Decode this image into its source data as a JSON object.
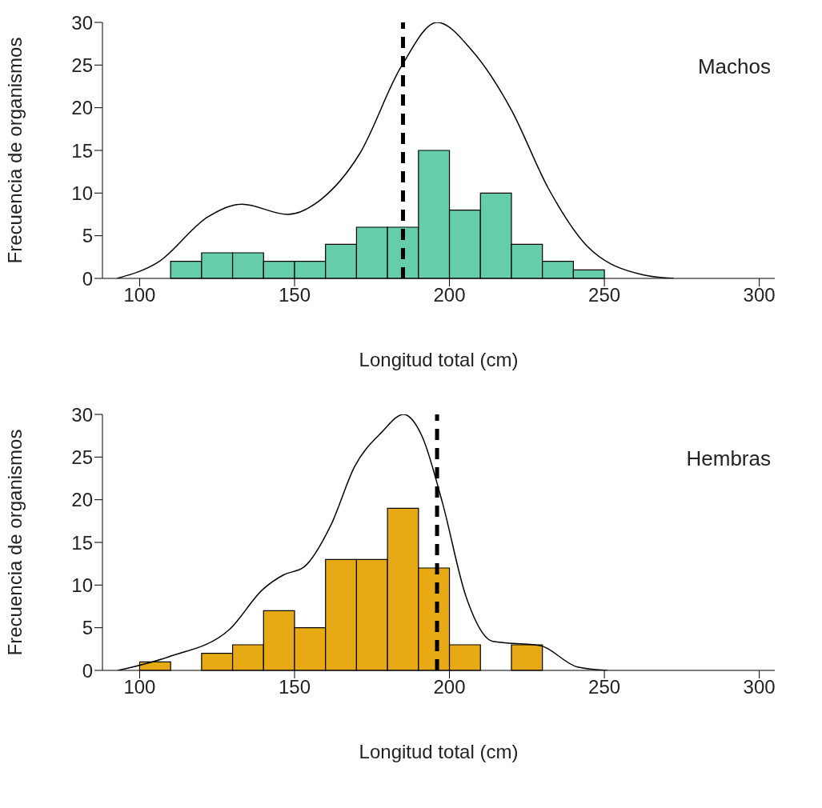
{
  "chart_data": [
    {
      "type": "histogram",
      "xlabel": "Longitud total (cm)",
      "ylabel": "Frecuencia de organismos",
      "annotations": [
        "Machos"
      ],
      "xlim": [
        88,
        305
      ],
      "xticks": [
        100,
        150,
        200,
        250,
        300
      ],
      "ylim": [
        0,
        30
      ],
      "yticks": [
        0,
        5,
        10,
        15,
        20,
        25,
        30
      ],
      "series": [
        {
          "color": "#66cdaa",
          "bins": [
            110,
            120,
            130,
            140,
            150,
            160,
            170,
            180,
            190,
            200,
            210,
            220,
            230,
            240,
            250
          ],
          "values": [
            2,
            3,
            3,
            2,
            2,
            4,
            6,
            6,
            15,
            8,
            10,
            4,
            2,
            1
          ]
        },
        {
          "type": "line",
          "color": "#000000",
          "x": [
            92.7,
            106,
            122,
            133,
            147.8,
            158.7,
            171,
            184.4,
            196,
            207.5,
            219.9,
            232,
            244.4,
            262.7,
            272.4
          ],
          "values": [
            0,
            1.9,
            7.2,
            8.7,
            7.5,
            9.3,
            14.6,
            24.8,
            30,
            26.6,
            19.8,
            10.5,
            3.8,
            0.4,
            0
          ]
        }
      ],
      "ref_lines": [
        {
          "axis": "x",
          "value": 185,
          "color": "#000000",
          "line_style": "dashed"
        }
      ]
    },
    {
      "type": "histogram",
      "xlabel": "Longitud total (cm)",
      "ylabel": "Frecuencia de organismos",
      "annotations": [
        "Hembras"
      ],
      "xlim": [
        88,
        305
      ],
      "xticks": [
        100,
        150,
        200,
        250,
        300
      ],
      "ylim": [
        0,
        30
      ],
      "yticks": [
        0,
        5,
        10,
        15,
        20,
        25,
        30
      ],
      "series": [
        {
          "color": "#e8aa14",
          "bins": [
            100,
            110,
            120,
            130,
            140,
            150,
            160,
            170,
            180,
            190,
            200,
            210,
            220,
            230
          ],
          "values": [
            1,
            0,
            2,
            3,
            7,
            5,
            13,
            13,
            19,
            12,
            3,
            0,
            3
          ]
        },
        {
          "type": "line",
          "color": "#000000",
          "x": [
            93,
            109.4,
            129,
            139.8,
            146.5,
            153,
            161.7,
            169.4,
            178.1,
            185.2,
            191.2,
            197.7,
            205.3,
            214,
            229.3,
            241.3,
            251
          ],
          "values": [
            0,
            1.6,
            4.8,
            9.5,
            11.2,
            12.1,
            17,
            23.9,
            27.9,
            30,
            27.4,
            19.7,
            8.7,
            3.4,
            2.9,
            0.4,
            0
          ]
        }
      ],
      "ref_lines": [
        {
          "axis": "x",
          "value": 196,
          "color": "#000000",
          "line_style": "dashed"
        }
      ]
    }
  ]
}
